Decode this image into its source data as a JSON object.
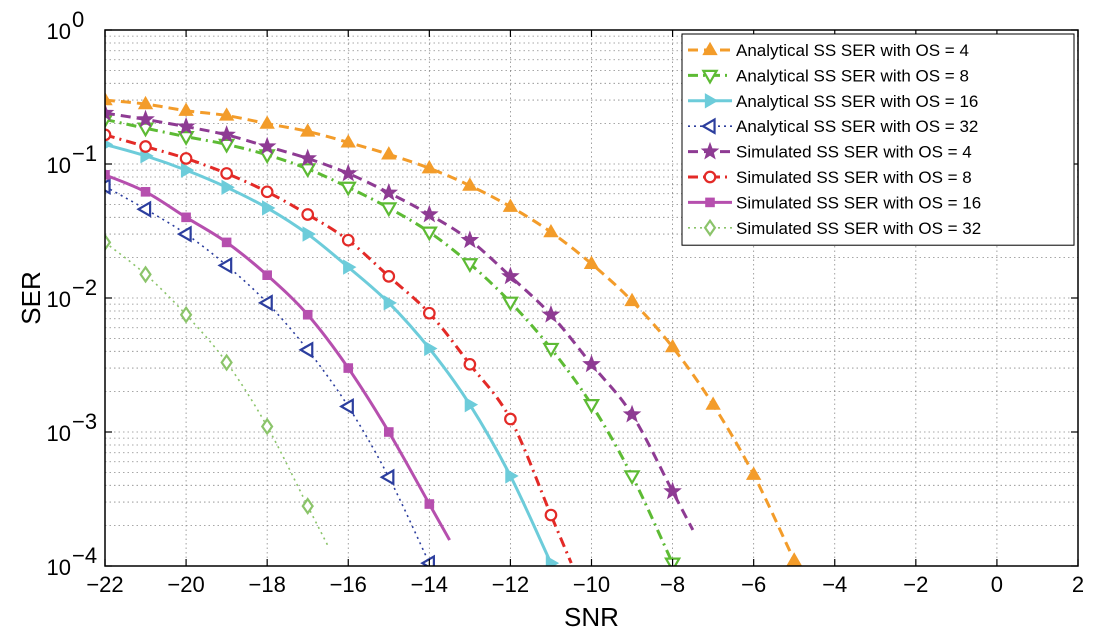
{
  "chart_data": {
    "type": "line",
    "xlabel": "SNR",
    "ylabel": "SER",
    "xlim": [
      -22,
      2
    ],
    "ylim": [
      0.0001,
      1
    ],
    "y_scale": "log",
    "grid": true,
    "legend_position": "top-right",
    "x_ticks": [
      -22,
      -20,
      -18,
      -16,
      -14,
      -12,
      -10,
      -8,
      -6,
      -4,
      -2,
      0,
      2
    ],
    "x_tick_labels": [
      "−22",
      "−20",
      "−18",
      "−16",
      "−14",
      "−12",
      "−10",
      "−8",
      "−6",
      "−4",
      "−2",
      "0",
      "2"
    ],
    "y_ticks": [
      0.0001,
      0.001,
      0.01,
      0.1,
      1
    ],
    "y_tick_labels": [
      {
        "base": "10",
        "exp": "−4"
      },
      {
        "base": "10",
        "exp": "−3"
      },
      {
        "base": "10",
        "exp": "−2"
      },
      {
        "base": "10",
        "exp": "−1"
      },
      {
        "base": "10",
        "exp": "0"
      }
    ],
    "series": [
      {
        "name": "Analytical SS SER with OS = 4",
        "color": "#F39C2A",
        "marker": "triangle-up",
        "dash": "dashed",
        "x": [
          -22,
          -21,
          -20,
          -19,
          -18,
          -17,
          -16,
          -15,
          -14,
          -13,
          -12,
          -11,
          -10,
          -9,
          -8,
          -7,
          -6,
          -5
        ],
        "y": [
          0.3,
          0.28,
          0.25,
          0.23,
          0.2,
          0.175,
          0.145,
          0.118,
          0.093,
          0.069,
          0.048,
          0.031,
          0.018,
          0.0095,
          0.0043,
          0.0016,
          0.00048,
          0.00011
        ]
      },
      {
        "name": "Analytical SS SER with OS = 8",
        "color": "#5DBB34",
        "marker": "triangle-down",
        "dash": "dashdot",
        "x": [
          -22,
          -21,
          -20,
          -19,
          -18,
          -17,
          -16,
          -15,
          -14,
          -13,
          -12,
          -11,
          -10,
          -9,
          -8
        ],
        "y": [
          0.215,
          0.185,
          0.16,
          0.14,
          0.117,
          0.092,
          0.067,
          0.047,
          0.031,
          0.018,
          0.0093,
          0.0042,
          0.0016,
          0.00047,
          0.000105
        ]
      },
      {
        "name": "Analytical SS SER with OS = 16",
        "color": "#6DCCDA",
        "marker": "triangle-right",
        "dash": "solid",
        "x": [
          -22,
          -21,
          -20,
          -19,
          -18,
          -17,
          -16,
          -15,
          -14,
          -13,
          -12,
          -11
        ],
        "y": [
          0.14,
          0.115,
          0.09,
          0.067,
          0.047,
          0.03,
          0.017,
          0.0092,
          0.0042,
          0.0016,
          0.00047,
          0.000105
        ]
      },
      {
        "name": "Analytical SS SER with OS = 32",
        "color": "#2C3E9E",
        "marker": "triangle-left",
        "dash": "dotted",
        "x": [
          -22,
          -21,
          -20,
          -19,
          -18,
          -17,
          -16,
          -15,
          -14
        ],
        "y": [
          0.068,
          0.046,
          0.03,
          0.0175,
          0.0092,
          0.0041,
          0.00155,
          0.00046,
          0.000105
        ]
      },
      {
        "name": "Simulated SS SER with OS = 4",
        "color": "#8E3B93",
        "marker": "star",
        "dash": "dashed",
        "x": [
          -22,
          -21,
          -20,
          -19,
          -18,
          -17,
          -16,
          -15,
          -14,
          -13,
          -12,
          -11,
          -10,
          -9,
          -8
        ],
        "y": [
          0.24,
          0.215,
          0.19,
          0.165,
          0.135,
          0.11,
          0.085,
          0.061,
          0.042,
          0.027,
          0.0145,
          0.0075,
          0.0032,
          0.00135,
          0.00036
        ]
      },
      {
        "name": "Simulated SS SER with OS = 8",
        "color": "#E32A27",
        "marker": "circle",
        "dash": "dashdot",
        "x": [
          -22,
          -21,
          -20,
          -19,
          -18,
          -17,
          -16,
          -15,
          -14,
          -13,
          -12,
          -11
        ],
        "y": [
          0.165,
          0.135,
          0.11,
          0.085,
          0.062,
          0.042,
          0.027,
          0.0145,
          0.0077,
          0.0032,
          0.00125,
          0.00024
        ]
      },
      {
        "name": "Simulated SS SER with OS = 16",
        "color": "#B64FAE",
        "marker": "square",
        "dash": "solid",
        "x": [
          -22,
          -21,
          -20,
          -19,
          -18,
          -17,
          -16,
          -15,
          -14
        ],
        "y": [
          0.083,
          0.062,
          0.04,
          0.026,
          0.0148,
          0.0075,
          0.003,
          0.001,
          0.00029
        ]
      },
      {
        "name": "Simulated SS SER with OS = 32",
        "color": "#8BC46A",
        "marker": "diamond",
        "dash": "dotted",
        "x": [
          -22,
          -21,
          -20,
          -19,
          -18,
          -17
        ],
        "y": [
          0.026,
          0.015,
          0.0075,
          0.0033,
          0.0011,
          0.00028
        ]
      }
    ]
  }
}
